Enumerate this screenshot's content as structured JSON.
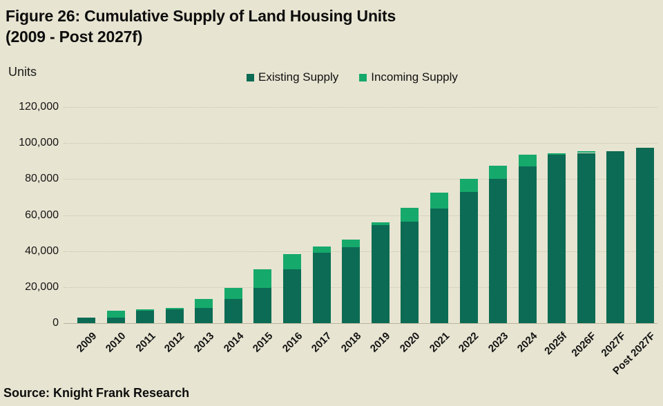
{
  "figure": {
    "title_line1": "Figure 26: Cumulative Supply of Land Housing Units",
    "title_line2": "(2009 - Post 2027f)",
    "units_label": "Units",
    "source": "Source: Knight Frank Research"
  },
  "colors": {
    "background": "#e7e4d1",
    "existing_supply": "#0c6b54",
    "incoming_supply": "#16a96c",
    "gridline": "#c7c4ac",
    "text": "#131313"
  },
  "chart_data": {
    "type": "bar",
    "stacked": true,
    "title": "Figure 26: Cumulative Supply of Land Housing Units (2009 - Post 2027f)",
    "xlabel": "",
    "ylabel": "Units",
    "ylim": [
      0,
      120000
    ],
    "ytick_interval": 20000,
    "ytick_labels": [
      "0",
      "20,000",
      "40,000",
      "60,000",
      "80,000",
      "100,000",
      "120,000"
    ],
    "grid": "horizontal-dotted",
    "legend_position": "top-center",
    "categories": [
      "2009",
      "2010",
      "2011",
      "2012",
      "2013",
      "2014",
      "2015",
      "2016",
      "2017",
      "2018",
      "2019",
      "2020",
      "2021",
      "2022",
      "2023",
      "2024",
      "2025f",
      "2026F",
      "2027F",
      "Post 2027F"
    ],
    "series": [
      {
        "name": "Existing Supply",
        "color": "#0c6b54",
        "values": [
          3000,
          3000,
          7000,
          7500,
          8500,
          13500,
          19500,
          30000,
          39000,
          42000,
          54500,
          56500,
          63500,
          73000,
          80000,
          87000,
          93500,
          94500,
          95500,
          97500
        ]
      },
      {
        "name": "Incoming Supply",
        "color": "#16a96c",
        "values": [
          0,
          4000,
          500,
          1000,
          5000,
          6000,
          10500,
          8500,
          3500,
          4500,
          1500,
          7500,
          9000,
          7000,
          7500,
          6500,
          1000,
          1000,
          0,
          0
        ]
      }
    ]
  }
}
